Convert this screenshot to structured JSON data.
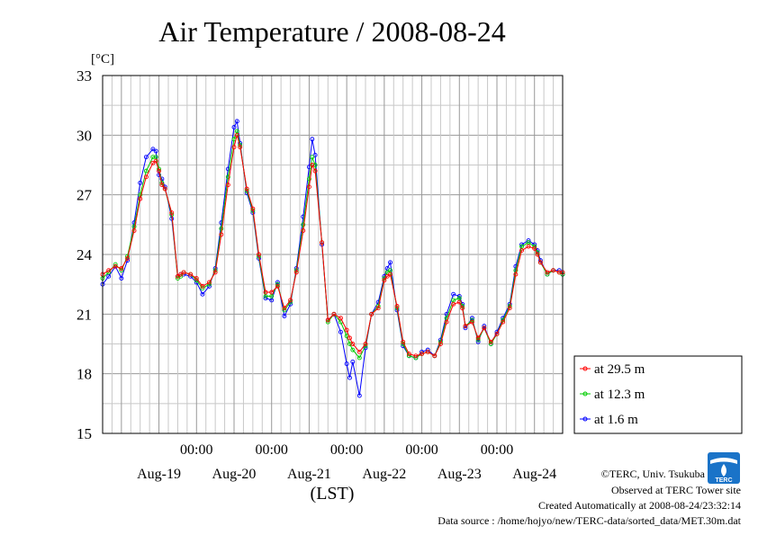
{
  "chart_data": {
    "type": "line",
    "title": "Air Temperature / 2008-08-24",
    "ylabel": "[°C]",
    "xlabel": "(LST)",
    "ylim": [
      15,
      33
    ],
    "yticks": [
      15,
      18,
      21,
      24,
      27,
      30,
      33
    ],
    "xlim_days": [
      18.75,
      24.875
    ],
    "x_tick_labels": [
      "00:00",
      "00:00",
      "00:00",
      "00:00",
      "00:00"
    ],
    "x_tick_days": [
      20,
      21,
      22,
      23,
      24
    ],
    "day_labels": [
      "Aug-19",
      "Aug-20",
      "Aug-21",
      "Aug-22",
      "Aug-23",
      "Aug-24"
    ],
    "day_label_days": [
      19.5,
      20.5,
      21.5,
      22.5,
      23.5,
      24.5
    ],
    "grid": true,
    "legend_position": "right, outside plot area",
    "series": [
      {
        "name": "at 29.5 m",
        "color": "#ff0000",
        "x": [
          18.75,
          18.83,
          18.92,
          19.0,
          19.08,
          19.17,
          19.25,
          19.33,
          19.42,
          19.46,
          19.5,
          19.54,
          19.58,
          19.67,
          19.75,
          19.79,
          19.83,
          19.92,
          20.0,
          20.08,
          20.17,
          20.25,
          20.33,
          20.42,
          20.5,
          20.54,
          20.58,
          20.67,
          20.75,
          20.83,
          20.92,
          21.0,
          21.08,
          21.17,
          21.25,
          21.33,
          21.42,
          21.5,
          21.54,
          21.58,
          21.67,
          21.75,
          21.83,
          21.92,
          22.0,
          22.04,
          22.08,
          22.17,
          22.25,
          22.33,
          22.42,
          22.5,
          22.54,
          22.58,
          22.67,
          22.75,
          22.83,
          22.92,
          23.0,
          23.08,
          23.17,
          23.25,
          23.33,
          23.42,
          23.5,
          23.54,
          23.58,
          23.67,
          23.75,
          23.83,
          23.92,
          24.0,
          24.08,
          24.17,
          24.25,
          24.33,
          24.42,
          24.5,
          24.54,
          24.58,
          24.67,
          24.75,
          24.83,
          24.875
        ],
        "y": [
          23.0,
          23.2,
          23.4,
          23.3,
          23.8,
          25.2,
          26.8,
          27.9,
          28.6,
          28.7,
          28.2,
          27.5,
          27.3,
          26.1,
          22.9,
          23.0,
          23.1,
          23.0,
          22.8,
          22.4,
          22.6,
          23.1,
          25.0,
          27.5,
          29.4,
          30.0,
          29.4,
          27.3,
          26.3,
          24.0,
          22.1,
          22.1,
          22.4,
          21.3,
          21.7,
          23.1,
          25.2,
          27.4,
          28.5,
          28.2,
          24.6,
          20.7,
          21.0,
          20.8,
          20.2,
          19.8,
          19.5,
          19.1,
          19.5,
          21.0,
          21.3,
          22.7,
          22.9,
          23.0,
          21.4,
          19.6,
          19.0,
          18.9,
          19.0,
          19.1,
          18.9,
          19.5,
          20.6,
          21.5,
          21.6,
          21.3,
          20.4,
          20.6,
          19.8,
          20.3,
          19.6,
          20.0,
          20.6,
          21.3,
          23.0,
          24.2,
          24.4,
          24.3,
          24.0,
          23.6,
          23.1,
          23.2,
          23.1,
          23.1
        ]
      },
      {
        "name": "at 12.3 m",
        "color": "#00cc00",
        "x": [
          18.75,
          18.83,
          18.92,
          19.0,
          19.08,
          19.17,
          19.25,
          19.33,
          19.42,
          19.46,
          19.5,
          19.54,
          19.58,
          19.67,
          19.75,
          19.79,
          19.83,
          19.92,
          20.0,
          20.08,
          20.17,
          20.25,
          20.33,
          20.42,
          20.5,
          20.54,
          20.58,
          20.67,
          20.75,
          20.83,
          20.92,
          21.0,
          21.08,
          21.17,
          21.25,
          21.33,
          21.42,
          21.5,
          21.54,
          21.58,
          21.67,
          21.75,
          21.83,
          21.92,
          22.0,
          22.04,
          22.08,
          22.17,
          22.25,
          22.33,
          22.42,
          22.5,
          22.54,
          22.58,
          22.67,
          22.75,
          22.83,
          22.92,
          23.0,
          23.08,
          23.17,
          23.25,
          23.33,
          23.42,
          23.5,
          23.54,
          23.58,
          23.67,
          23.75,
          23.83,
          23.92,
          24.0,
          24.08,
          24.17,
          24.25,
          24.33,
          24.42,
          24.5,
          24.54,
          24.58,
          24.67,
          24.75,
          24.83,
          24.875
        ],
        "y": [
          22.8,
          23.1,
          23.5,
          23.2,
          23.9,
          25.4,
          27.0,
          28.2,
          28.9,
          28.9,
          28.3,
          27.6,
          27.3,
          26.0,
          22.8,
          22.9,
          23.1,
          23.0,
          22.7,
          22.3,
          22.5,
          23.2,
          25.3,
          27.9,
          29.8,
          30.2,
          29.5,
          27.2,
          26.2,
          23.9,
          21.9,
          21.9,
          22.5,
          21.2,
          21.6,
          23.2,
          25.5,
          27.8,
          28.9,
          28.5,
          24.6,
          20.6,
          21.0,
          20.6,
          19.9,
          19.5,
          19.2,
          18.8,
          19.4,
          21.0,
          21.4,
          22.8,
          23.1,
          23.2,
          21.3,
          19.5,
          18.9,
          18.8,
          19.0,
          19.1,
          18.9,
          19.6,
          20.8,
          21.7,
          21.8,
          21.4,
          20.4,
          20.7,
          19.7,
          20.3,
          19.5,
          20.0,
          20.7,
          21.4,
          23.2,
          24.4,
          24.6,
          24.4,
          24.1,
          23.6,
          23.0,
          23.2,
          23.1,
          23.0
        ]
      },
      {
        "name": "at 1.6 m",
        "color": "#0000ff",
        "x": [
          18.75,
          18.83,
          18.92,
          19.0,
          19.08,
          19.17,
          19.25,
          19.33,
          19.42,
          19.46,
          19.5,
          19.54,
          19.58,
          19.67,
          19.75,
          19.79,
          19.83,
          19.92,
          20.0,
          20.08,
          20.17,
          20.25,
          20.33,
          20.42,
          20.5,
          20.54,
          20.58,
          20.67,
          20.75,
          20.83,
          20.92,
          21.0,
          21.08,
          21.17,
          21.25,
          21.33,
          21.42,
          21.5,
          21.54,
          21.58,
          21.67,
          21.75,
          21.83,
          21.92,
          22.0,
          22.04,
          22.08,
          22.17,
          22.25,
          22.33,
          22.42,
          22.5,
          22.54,
          22.58,
          22.67,
          22.75,
          22.83,
          22.92,
          23.0,
          23.08,
          23.17,
          23.25,
          23.33,
          23.42,
          23.5,
          23.54,
          23.58,
          23.67,
          23.75,
          23.83,
          23.92,
          24.0,
          24.08,
          24.17,
          24.25,
          24.33,
          24.42,
          24.5,
          24.54,
          24.58,
          24.67,
          24.75,
          24.83,
          24.875
        ],
        "y": [
          22.5,
          22.9,
          23.4,
          22.8,
          23.7,
          25.6,
          27.6,
          28.9,
          29.3,
          29.2,
          28.0,
          27.8,
          27.4,
          25.8,
          22.9,
          23.0,
          23.0,
          22.9,
          22.6,
          22.0,
          22.4,
          23.3,
          25.6,
          28.3,
          30.4,
          30.7,
          29.6,
          27.1,
          26.1,
          23.8,
          21.8,
          21.7,
          22.6,
          20.9,
          21.5,
          23.3,
          25.9,
          28.4,
          29.8,
          29.0,
          24.5,
          20.7,
          21.0,
          20.1,
          18.5,
          17.8,
          18.6,
          16.9,
          19.3,
          21.0,
          21.6,
          22.9,
          23.3,
          23.6,
          21.2,
          19.4,
          18.9,
          18.8,
          19.1,
          19.2,
          18.9,
          19.7,
          21.0,
          22.0,
          21.9,
          21.5,
          20.3,
          20.8,
          19.6,
          20.4,
          19.5,
          20.1,
          20.8,
          21.5,
          23.4,
          24.5,
          24.7,
          24.5,
          24.2,
          23.7,
          23.0,
          23.2,
          23.2,
          23.0
        ]
      }
    ]
  },
  "credits": {
    "line1": "©TERC, Univ. Tsukuba",
    "line2": "Observed at TERC Tower site",
    "line3": "Created Automatically at 2008-08-24/23:32:14",
    "line4": "Data source : /home/hojyo/new/TERC-data/sorted_data/MET.30m.dat"
  },
  "logo": {
    "text": "TERC",
    "icon": "terc-logo-icon",
    "color": "#1a73c8"
  }
}
